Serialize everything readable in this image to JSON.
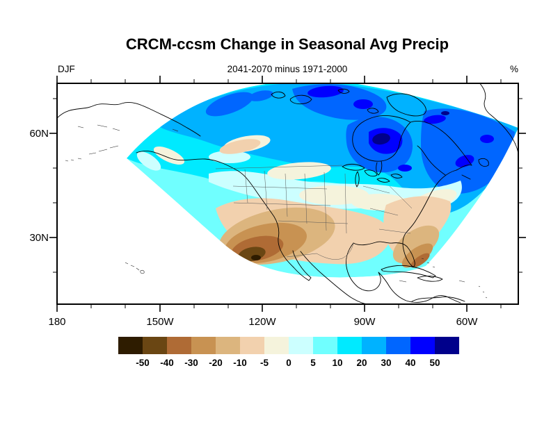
{
  "title": "CRCM-ccsm Change in Seasonal Avg Precip",
  "header": {
    "left": "DJF",
    "center": "2041-2070 minus 1971-2000",
    "right": "%"
  },
  "axes": {
    "x": {
      "major_labels": [
        "180",
        "150W",
        "120W",
        "90W",
        "60W"
      ]
    },
    "y": {
      "major_labels": [
        "60N",
        "30N"
      ]
    }
  },
  "colorbar": {
    "colors": [
      "#2E1C00",
      "#6A4613",
      "#AF6B35",
      "#C89252",
      "#DCB57E",
      "#F2D1AE",
      "#F5F3DC",
      "#CCFFFF",
      "#70FFFF",
      "#00EAFF",
      "#00B2FF",
      "#0066FF",
      "#0000FF",
      "#00008B"
    ],
    "labels": [
      "-50",
      "-40",
      "-30",
      "-20",
      "-10",
      "-5",
      "0",
      "5",
      "10",
      "20",
      "30",
      "40",
      "50"
    ]
  },
  "chart_data": {
    "type": "heatmap",
    "subtype": "filled-contour-map",
    "title": "CRCM-ccsm Change in Seasonal Avg Precip",
    "season": "DJF",
    "period": "2041-2070 minus 1971-2000",
    "units": "%",
    "projection": "Lambert conformal fan domain over North America",
    "x_tick_labels": [
      "180",
      "150W",
      "120W",
      "90W",
      "60W"
    ],
    "y_tick_labels": [
      "60N",
      "30N"
    ],
    "contour_levels": [
      -50,
      -40,
      -30,
      -20,
      -10,
      -5,
      0,
      5,
      10,
      20,
      30,
      40,
      50
    ],
    "level_colors": [
      "#2E1C00",
      "#6A4613",
      "#AF6B35",
      "#C89252",
      "#DCB57E",
      "#F2D1AE",
      "#F5F3DC",
      "#CCFFFF",
      "#70FFFF",
      "#00EAFF",
      "#00B2FF",
      "#0066FF",
      "#0000FF",
      "#00008B"
    ],
    "legend_position": "bottom",
    "grid": "off",
    "summary_regions": [
      {
        "region": "Arctic / northern Canada",
        "value_pct": "+20 to +40"
      },
      {
        "region": "East of Hudson Bay and Baffin area",
        "value_pct": "+40 to more than +50"
      },
      {
        "region": "Central US / Great Plains",
        "value_pct": "-5 to +10"
      },
      {
        "region": "US Southwest and northern Mexico",
        "value_pct": "-20 to -50"
      },
      {
        "region": "Florida and subtropical west Atlantic",
        "value_pct": "-10 to -40"
      },
      {
        "region": "Pacific Northwest coast",
        "value_pct": "0 to +10"
      }
    ]
  }
}
